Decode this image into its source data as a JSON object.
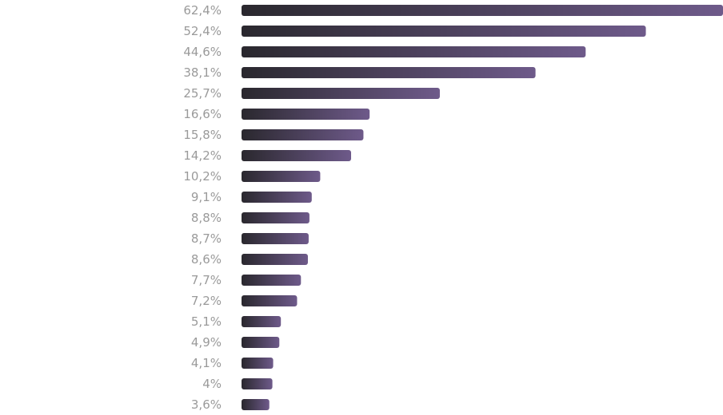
{
  "chart_data": {
    "type": "bar",
    "orientation": "horizontal",
    "value_format": "percent-comma-decimal",
    "values": [
      62.4,
      52.4,
      44.6,
      38.1,
      25.7,
      16.6,
      15.8,
      14.2,
      10.2,
      9.1,
      8.8,
      8.7,
      8.6,
      7.7,
      7.2,
      5.1,
      4.9,
      4.1,
      4,
      3.6
    ],
    "data_labels": [
      "62,4%",
      "52,4%",
      "44,6%",
      "38,1%",
      "25,7%",
      "16,6%",
      "15,8%",
      "14,2%",
      "10,2%",
      "9,1%",
      "8,8%",
      "8,7%",
      "8,6%",
      "7,7%",
      "7,2%",
      "5,1%",
      "4,9%",
      "4,1%",
      "4%",
      "3,6%"
    ],
    "xlim": [
      0,
      62.4
    ],
    "grid": false,
    "legend": "none",
    "colors": {
      "bar_gradient_start": "#2a282e",
      "bar_gradient_end": "#6e5a8a",
      "label": "#9a9a9a"
    }
  }
}
